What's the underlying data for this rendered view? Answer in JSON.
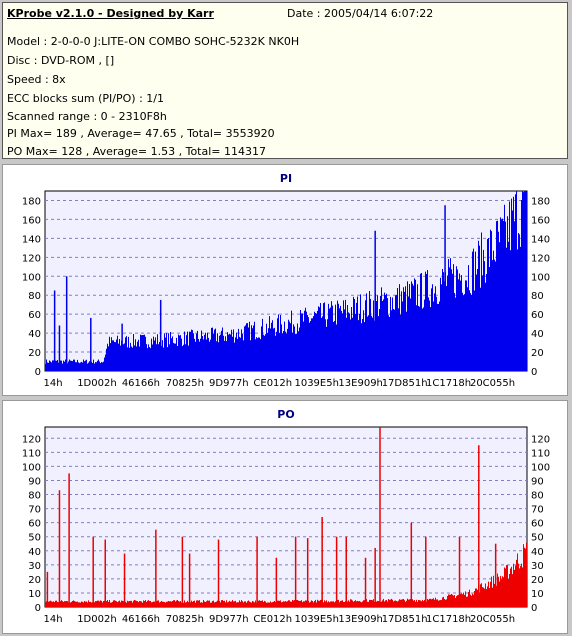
{
  "header": {
    "title": "KProbe v2.1.0 - Designed by Karr",
    "date": "Date : 2005/04/14 6:07:22",
    "lines": [
      "Model : 2-0-0-0 J:LITE-ON COMBO SOHC-5232K NK0H",
      "Disc : DVD-ROM ,  []",
      "Speed : 8x",
      "ECC blocks sum (PI/PO) : 1/1",
      "Scanned range : 0 - 2310F8h",
      "PI Max= 189 , Average= 47.65 , Total= 3553920",
      "PO Max= 128 , Average= 1.53 , Total= 114317"
    ]
  },
  "chart_data": [
    {
      "type": "area",
      "title": "PI",
      "x_tick_labels": [
        "14h",
        "1D002h",
        "46166h",
        "70825h",
        "9D977h",
        "CE012h",
        "1039E5h",
        "13E909h",
        "17D851h",
        "1C1718h",
        "20C055h"
      ],
      "x_range": [
        "0h",
        "2310F8h"
      ],
      "ylim": [
        0,
        190
      ],
      "y_ticks": [
        0,
        20,
        40,
        60,
        80,
        100,
        120,
        140,
        160,
        180
      ],
      "grid": true,
      "color": "#0000ee",
      "series_profile_x_fraction": [
        0.0,
        0.12,
        0.13,
        0.25,
        0.38,
        0.5,
        0.62,
        0.75,
        0.88,
        0.95,
        1.0
      ],
      "series_profile_value": [
        10,
        10,
        30,
        33,
        38,
        50,
        63,
        78,
        105,
        140,
        185
      ],
      "spikes": [
        {
          "x_fraction": 0.02,
          "value": 85
        },
        {
          "x_fraction": 0.03,
          "value": 48
        },
        {
          "x_fraction": 0.045,
          "value": 100
        },
        {
          "x_fraction": 0.095,
          "value": 56
        },
        {
          "x_fraction": 0.16,
          "value": 50
        },
        {
          "x_fraction": 0.24,
          "value": 75
        },
        {
          "x_fraction": 0.685,
          "value": 148
        },
        {
          "x_fraction": 0.83,
          "value": 175
        }
      ],
      "max": 189,
      "average": 47.65
    },
    {
      "type": "area",
      "title": "PO",
      "x_tick_labels": [
        "14h",
        "1D002h",
        "46166h",
        "70825h",
        "9D977h",
        "CE012h",
        "1039E5h",
        "13E909h",
        "17D851h",
        "1C1718h",
        "20C055h"
      ],
      "x_range": [
        "0h",
        "2310F8h"
      ],
      "ylim": [
        0,
        128
      ],
      "y_ticks": [
        0,
        10,
        20,
        30,
        40,
        50,
        60,
        70,
        80,
        90,
        100,
        110,
        120
      ],
      "grid": true,
      "color": "#ee0000",
      "series_profile_x_fraction": [
        0.0,
        0.2,
        0.5,
        0.8,
        0.88,
        0.95,
        1.0
      ],
      "series_profile_value": [
        4,
        4,
        4,
        5,
        10,
        22,
        40
      ],
      "spikes": [
        {
          "x_fraction": 0.005,
          "value": 25
        },
        {
          "x_fraction": 0.03,
          "value": 83
        },
        {
          "x_fraction": 0.05,
          "value": 95
        },
        {
          "x_fraction": 0.1,
          "value": 50
        },
        {
          "x_fraction": 0.125,
          "value": 48
        },
        {
          "x_fraction": 0.165,
          "value": 38
        },
        {
          "x_fraction": 0.23,
          "value": 55
        },
        {
          "x_fraction": 0.285,
          "value": 50
        },
        {
          "x_fraction": 0.3,
          "value": 38
        },
        {
          "x_fraction": 0.36,
          "value": 48
        },
        {
          "x_fraction": 0.44,
          "value": 50
        },
        {
          "x_fraction": 0.48,
          "value": 35
        },
        {
          "x_fraction": 0.52,
          "value": 50
        },
        {
          "x_fraction": 0.545,
          "value": 49
        },
        {
          "x_fraction": 0.575,
          "value": 64
        },
        {
          "x_fraction": 0.605,
          "value": 50
        },
        {
          "x_fraction": 0.625,
          "value": 50
        },
        {
          "x_fraction": 0.665,
          "value": 35
        },
        {
          "x_fraction": 0.685,
          "value": 42
        },
        {
          "x_fraction": 0.695,
          "value": 128
        },
        {
          "x_fraction": 0.76,
          "value": 60
        },
        {
          "x_fraction": 0.79,
          "value": 50
        },
        {
          "x_fraction": 0.86,
          "value": 50
        },
        {
          "x_fraction": 0.9,
          "value": 115
        },
        {
          "x_fraction": 0.935,
          "value": 45
        }
      ],
      "max": 128,
      "average": 1.53
    }
  ]
}
